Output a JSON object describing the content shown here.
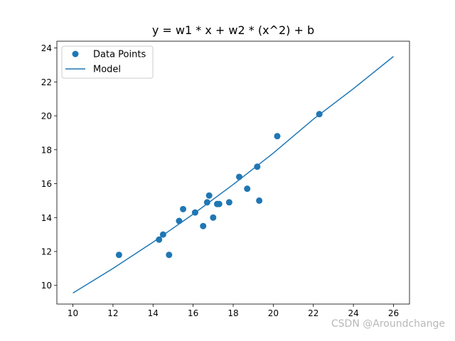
{
  "chart_data": {
    "type": "scatter",
    "title": "y = w1 * x + w2 * (x^2) + b",
    "xlabel": "",
    "ylabel": "",
    "xlim": [
      9.2,
      26.8
    ],
    "ylim": [
      8.9,
      24.4
    ],
    "xticks": [
      10,
      12,
      14,
      16,
      18,
      20,
      22,
      24,
      26
    ],
    "yticks": [
      10,
      12,
      14,
      16,
      18,
      20,
      22,
      24
    ],
    "grid": false,
    "legend_position": "top-left",
    "colors": {
      "series": "#1f77b4",
      "axes": "#000000"
    },
    "series": [
      {
        "name": "Data Points",
        "kind": "scatter",
        "x": [
          12.3,
          14.3,
          14.5,
          14.8,
          15.3,
          15.5,
          16.1,
          16.5,
          16.7,
          16.8,
          17.0,
          17.2,
          17.3,
          17.8,
          18.3,
          18.7,
          19.2,
          19.3,
          20.2,
          22.3
        ],
        "y": [
          11.8,
          12.7,
          13.0,
          11.8,
          13.8,
          14.5,
          14.3,
          13.5,
          14.9,
          15.3,
          14.0,
          14.8,
          14.8,
          14.9,
          16.4,
          15.7,
          17.0,
          15.0,
          18.8,
          20.1
        ]
      },
      {
        "name": "Model",
        "kind": "line",
        "x": [
          10,
          12,
          14,
          16,
          18,
          20,
          22,
          24,
          26
        ],
        "y": [
          9.55,
          11.0,
          12.55,
          14.2,
          15.95,
          17.8,
          19.8,
          21.6,
          23.5
        ]
      }
    ]
  },
  "watermark": "CSDN @Aroundchange"
}
